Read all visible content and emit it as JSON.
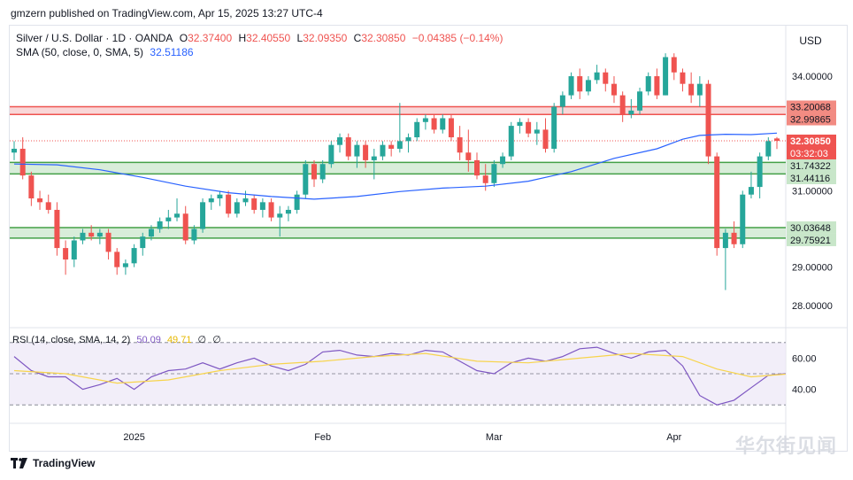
{
  "header": {
    "text": "gmzern published on TradingView.com, Apr 15, 2025 13:27 UTC-4"
  },
  "legend": {
    "symbol": "Silver / U.S. Dollar · 1D · OANDA",
    "o_label": "O",
    "o": "32.37400",
    "h_label": "H",
    "h": "32.40550",
    "l_label": "L",
    "l": "32.09350",
    "c_label": "C",
    "c": "32.30850",
    "change": "−0.04385 (−0.14%)",
    "sma_text": "SMA (50, close, 0, SMA, 5)",
    "sma_value": "32.51186"
  },
  "rsi_legend": {
    "text": "RSI (14, close, SMA, 14, 2)",
    "rsi": "50.09",
    "sma": "49.71",
    "z1": "∅",
    "z2": "∅"
  },
  "currency": "USD",
  "footer": {
    "logo_text": "TradingView"
  },
  "watermark": {
    "text": "华尔街见闻"
  },
  "colors": {
    "up": "#26a69a",
    "down": "#ef5350",
    "sma": "#2962ff",
    "rsi": "#7e57c2",
    "rsi_sma": "#f7d44c",
    "zone_red": "#f7c6c7",
    "zone_green": "#c8e6c9"
  },
  "chart_data": {
    "type": "candlestick",
    "title": "Silver / U.S. Dollar · 1D · OANDA",
    "ylim": [
      27.6,
      35.3
    ],
    "y_ticks": [
      28,
      29,
      31,
      34
    ],
    "y_tick_labels": [
      "28.00000",
      "29.00000",
      "31.00000",
      "34.00000"
    ],
    "x_labels": [
      {
        "label": "2025",
        "index": 14
      },
      {
        "label": "Feb",
        "index": 36
      },
      {
        "label": "Mar",
        "index": 56
      },
      {
        "label": "Apr",
        "index": 77
      }
    ],
    "price_labels": [
      {
        "value": "33.20068",
        "price": 33.20068,
        "kind": "red"
      },
      {
        "value": "32.99865",
        "price": 32.99865,
        "kind": "red"
      },
      {
        "value": "32.30850",
        "price": 32.3085,
        "kind": "last"
      },
      {
        "value": "03:32:03",
        "price": 32.3085,
        "kind": "timer"
      },
      {
        "value": "31.74322",
        "price": 31.74322,
        "kind": "green"
      },
      {
        "value": "31.44116",
        "price": 31.44116,
        "kind": "green"
      },
      {
        "value": "30.03648",
        "price": 30.03648,
        "kind": "green"
      },
      {
        "value": "29.75921",
        "price": 29.75921,
        "kind": "green"
      }
    ],
    "zones": [
      {
        "low": 32.99865,
        "high": 33.20068,
        "color": "red"
      },
      {
        "low": 31.44116,
        "high": 31.74322,
        "color": "green"
      },
      {
        "low": 29.75921,
        "high": 30.03648,
        "color": "green"
      }
    ],
    "last_price": 32.3085,
    "candles": [
      [
        32.0,
        32.3,
        31.8,
        32.1
      ],
      [
        32.1,
        32.4,
        31.3,
        31.4
      ],
      [
        31.4,
        31.5,
        30.6,
        30.8
      ],
      [
        30.8,
        31.0,
        30.5,
        30.7
      ],
      [
        30.7,
        30.9,
        30.4,
        30.5
      ],
      [
        30.5,
        30.7,
        29.3,
        29.5
      ],
      [
        29.5,
        29.7,
        28.8,
        29.2
      ],
      [
        29.2,
        29.8,
        29.0,
        29.7
      ],
      [
        29.7,
        30.0,
        29.6,
        29.9
      ],
      [
        29.9,
        30.1,
        29.7,
        29.8
      ],
      [
        29.8,
        30.0,
        29.6,
        29.9
      ],
      [
        29.9,
        30.0,
        29.2,
        29.4
      ],
      [
        29.4,
        29.5,
        28.8,
        29.0
      ],
      [
        29.0,
        29.2,
        28.8,
        29.1
      ],
      [
        29.1,
        29.6,
        29.0,
        29.5
      ],
      [
        29.5,
        29.9,
        29.3,
        29.8
      ],
      [
        29.8,
        30.1,
        29.7,
        30.0
      ],
      [
        30.0,
        30.3,
        29.9,
        30.2
      ],
      [
        30.2,
        30.5,
        30.0,
        30.3
      ],
      [
        30.3,
        30.8,
        30.2,
        30.4
      ],
      [
        30.4,
        30.6,
        29.6,
        29.7
      ],
      [
        29.7,
        30.1,
        29.6,
        30.0
      ],
      [
        30.0,
        30.8,
        29.9,
        30.7
      ],
      [
        30.7,
        30.9,
        30.5,
        30.8
      ],
      [
        30.8,
        31.0,
        30.6,
        30.9
      ],
      [
        30.9,
        31.0,
        30.3,
        30.4
      ],
      [
        30.4,
        30.8,
        30.3,
        30.7
      ],
      [
        30.7,
        31.0,
        30.6,
        30.8
      ],
      [
        30.8,
        30.9,
        30.4,
        30.5
      ],
      [
        30.5,
        30.8,
        30.3,
        30.7
      ],
      [
        30.7,
        30.8,
        30.2,
        30.3
      ],
      [
        30.3,
        30.6,
        29.8,
        30.4
      ],
      [
        30.4,
        30.6,
        30.2,
        30.5
      ],
      [
        30.5,
        31.0,
        30.4,
        30.9
      ],
      [
        30.9,
        31.8,
        30.8,
        31.7
      ],
      [
        31.7,
        31.8,
        31.1,
        31.3
      ],
      [
        31.3,
        31.8,
        31.2,
        31.7
      ],
      [
        31.7,
        32.3,
        31.6,
        32.2
      ],
      [
        32.2,
        32.5,
        32.0,
        32.4
      ],
      [
        32.4,
        32.5,
        31.8,
        31.9
      ],
      [
        31.9,
        32.3,
        31.6,
        32.2
      ],
      [
        32.2,
        32.3,
        31.6,
        31.8
      ],
      [
        31.8,
        32.1,
        31.3,
        31.9
      ],
      [
        31.9,
        32.3,
        31.8,
        32.2
      ],
      [
        32.2,
        32.3,
        31.9,
        32.1
      ],
      [
        32.1,
        33.3,
        32.0,
        32.3
      ],
      [
        32.3,
        32.5,
        32.0,
        32.4
      ],
      [
        32.4,
        32.9,
        32.3,
        32.8
      ],
      [
        32.8,
        33.0,
        32.6,
        32.9
      ],
      [
        32.9,
        33.0,
        32.5,
        32.6
      ],
      [
        32.6,
        33.0,
        32.5,
        32.9
      ],
      [
        32.9,
        33.0,
        32.3,
        32.4
      ],
      [
        32.4,
        32.7,
        31.8,
        32.0
      ],
      [
        32.0,
        32.6,
        31.5,
        31.8
      ],
      [
        31.8,
        32.0,
        31.3,
        31.4
      ],
      [
        31.4,
        31.7,
        31.0,
        31.2
      ],
      [
        31.2,
        31.8,
        31.1,
        31.7
      ],
      [
        31.7,
        32.0,
        31.6,
        31.9
      ],
      [
        31.9,
        32.8,
        31.8,
        32.7
      ],
      [
        32.7,
        32.9,
        32.5,
        32.8
      ],
      [
        32.8,
        32.9,
        32.4,
        32.5
      ],
      [
        32.5,
        32.8,
        32.2,
        32.6
      ],
      [
        32.6,
        32.9,
        32.0,
        32.1
      ],
      [
        32.1,
        33.3,
        32.0,
        33.2
      ],
      [
        33.2,
        33.6,
        33.0,
        33.5
      ],
      [
        33.5,
        34.1,
        33.4,
        34.0
      ],
      [
        34.0,
        34.2,
        33.4,
        33.6
      ],
      [
        33.6,
        34.0,
        33.5,
        33.9
      ],
      [
        33.9,
        34.3,
        33.8,
        34.1
      ],
      [
        34.1,
        34.2,
        33.6,
        33.8
      ],
      [
        33.8,
        34.0,
        33.3,
        33.5
      ],
      [
        33.5,
        33.6,
        32.8,
        33.0
      ],
      [
        33.0,
        33.4,
        32.9,
        33.1
      ],
      [
        33.1,
        33.7,
        33.0,
        33.6
      ],
      [
        33.6,
        34.1,
        33.5,
        34.0
      ],
      [
        34.0,
        34.2,
        33.4,
        33.5
      ],
      [
        33.5,
        34.6,
        33.5,
        34.5
      ],
      [
        34.5,
        34.6,
        33.9,
        34.1
      ],
      [
        34.1,
        34.2,
        33.6,
        33.8
      ],
      [
        33.8,
        34.1,
        33.3,
        33.5
      ],
      [
        33.5,
        34.0,
        33.2,
        33.8
      ],
      [
        33.8,
        33.9,
        31.7,
        31.9
      ],
      [
        31.9,
        32.0,
        29.3,
        29.5
      ],
      [
        29.5,
        30.0,
        28.4,
        29.9
      ],
      [
        29.9,
        30.2,
        29.5,
        29.6
      ],
      [
        29.6,
        31.0,
        29.5,
        30.9
      ],
      [
        30.9,
        31.5,
        30.8,
        31.1
      ],
      [
        31.1,
        32.0,
        30.8,
        31.9
      ],
      [
        31.9,
        32.4,
        31.8,
        32.3
      ],
      [
        32.37,
        32.4055,
        32.0935,
        32.3085
      ]
    ],
    "sma": [
      [
        0,
        31.7
      ],
      [
        5,
        31.68
      ],
      [
        10,
        31.55
      ],
      [
        15,
        31.35
      ],
      [
        20,
        31.12
      ],
      [
        25,
        30.95
      ],
      [
        30,
        30.85
      ],
      [
        35,
        30.78
      ],
      [
        40,
        30.85
      ],
      [
        45,
        30.98
      ],
      [
        50,
        31.07
      ],
      [
        55,
        31.12
      ],
      [
        60,
        31.25
      ],
      [
        65,
        31.5
      ],
      [
        70,
        31.85
      ],
      [
        75,
        32.1
      ],
      [
        78,
        32.35
      ],
      [
        80,
        32.45
      ],
      [
        83,
        32.48
      ],
      [
        86,
        32.47
      ],
      [
        89,
        32.51
      ]
    ],
    "rsi_range": [
      25,
      75
    ],
    "rsi_levels": [
      30,
      50,
      70
    ],
    "rsi_tick_labels": [
      "60.00",
      "40.00"
    ],
    "rsi_ticks": [
      60,
      40
    ],
    "rsi": [
      [
        0,
        61
      ],
      [
        2,
        52
      ],
      [
        4,
        48
      ],
      [
        6,
        48
      ],
      [
        8,
        40
      ],
      [
        10,
        43
      ],
      [
        12,
        47
      ],
      [
        14,
        40
      ],
      [
        16,
        48
      ],
      [
        18,
        52
      ],
      [
        20,
        53
      ],
      [
        22,
        57
      ],
      [
        24,
        53
      ],
      [
        26,
        57
      ],
      [
        28,
        60
      ],
      [
        30,
        55
      ],
      [
        32,
        52
      ],
      [
        34,
        56
      ],
      [
        36,
        64
      ],
      [
        38,
        65
      ],
      [
        40,
        62
      ],
      [
        42,
        61
      ],
      [
        44,
        63
      ],
      [
        46,
        62
      ],
      [
        48,
        65
      ],
      [
        50,
        64
      ],
      [
        52,
        58
      ],
      [
        54,
        52
      ],
      [
        56,
        50
      ],
      [
        58,
        57
      ],
      [
        60,
        60
      ],
      [
        62,
        58
      ],
      [
        64,
        61
      ],
      [
        66,
        66
      ],
      [
        68,
        67
      ],
      [
        70,
        63
      ],
      [
        72,
        60
      ],
      [
        74,
        64
      ],
      [
        76,
        65
      ],
      [
        78,
        55
      ],
      [
        80,
        36
      ],
      [
        82,
        30
      ],
      [
        84,
        33
      ],
      [
        86,
        41
      ],
      [
        88,
        49
      ],
      [
        90,
        50
      ]
    ],
    "rsi_sma": [
      [
        0,
        52
      ],
      [
        6,
        50
      ],
      [
        12,
        44
      ],
      [
        18,
        46
      ],
      [
        24,
        52
      ],
      [
        30,
        56
      ],
      [
        36,
        58
      ],
      [
        42,
        61
      ],
      [
        48,
        63
      ],
      [
        54,
        58
      ],
      [
        60,
        57
      ],
      [
        66,
        60
      ],
      [
        72,
        63
      ],
      [
        78,
        61
      ],
      [
        82,
        53
      ],
      [
        86,
        48
      ],
      [
        90,
        49.7
      ]
    ]
  }
}
